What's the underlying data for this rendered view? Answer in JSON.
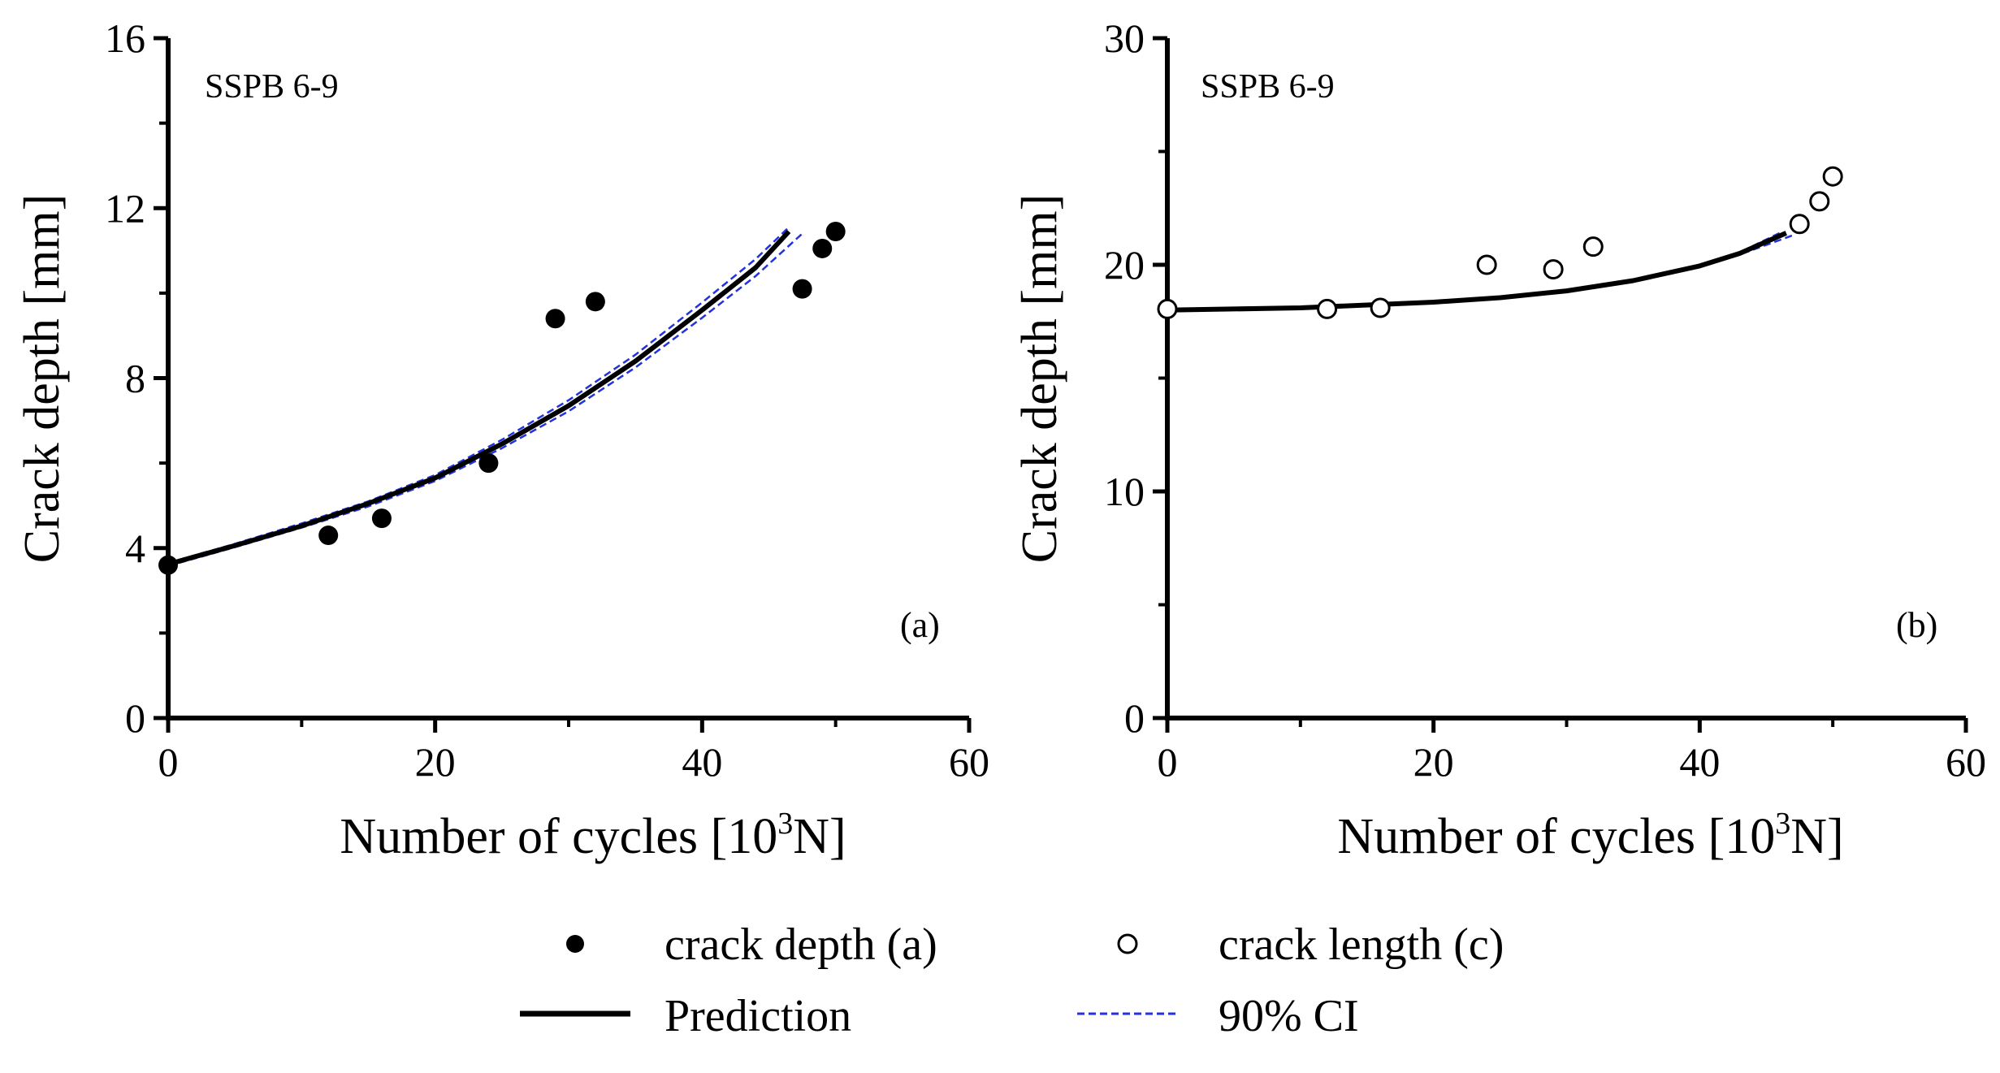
{
  "chart_data": [
    {
      "type": "scatter",
      "panel_title": "SSPB 6-9",
      "panel_tag": "(a)",
      "xlabel": "Number of cycles [10",
      "xlabel_sup": "3",
      "xlabel_tail": "N]",
      "ylabel": "Crack depth [mm]",
      "xlim": [
        0,
        60
      ],
      "ylim": [
        0,
        16
      ],
      "xticks": [
        "0",
        "20",
        "40",
        "60"
      ],
      "yticks": [
        "0",
        "4",
        "8",
        "12",
        "16"
      ],
      "grid": false,
      "series": [
        {
          "name": "crack depth (a)",
          "marker": "filled-circle",
          "points": [
            [
              0,
              3.6
            ],
            [
              12,
              4.3
            ],
            [
              16,
              4.7
            ],
            [
              24,
              6.0
            ],
            [
              29,
              9.4
            ],
            [
              32,
              9.8
            ],
            [
              47.5,
              10.1
            ],
            [
              49,
              11.05
            ],
            [
              50,
              11.45
            ]
          ]
        },
        {
          "name": "Prediction",
          "style": "solid",
          "points": [
            [
              0,
              3.62
            ],
            [
              5,
              4.06
            ],
            [
              10,
              4.52
            ],
            [
              15,
              5.05
            ],
            [
              20,
              5.65
            ],
            [
              25,
              6.45
            ],
            [
              30,
              7.35
            ],
            [
              35,
              8.4
            ],
            [
              40,
              9.6
            ],
            [
              44,
              10.6
            ],
            [
              46.5,
              11.45
            ]
          ]
        },
        {
          "name": "90% CI",
          "style": "dashed",
          "points": [
            [
              0,
              3.65
            ],
            [
              5,
              4.1
            ],
            [
              10,
              4.58
            ],
            [
              15,
              5.1
            ],
            [
              20,
              5.72
            ],
            [
              25,
              6.55
            ],
            [
              30,
              7.48
            ],
            [
              35,
              8.55
            ],
            [
              40,
              9.78
            ],
            [
              44,
              10.8
            ],
            [
              46.5,
              11.55
            ]
          ]
        },
        {
          "name": "90% CI",
          "style": "dashed",
          "points": [
            [
              0,
              3.58
            ],
            [
              5,
              4.02
            ],
            [
              10,
              4.48
            ],
            [
              15,
              4.98
            ],
            [
              20,
              5.58
            ],
            [
              25,
              6.35
            ],
            [
              30,
              7.22
            ],
            [
              35,
              8.25
            ],
            [
              40,
              9.42
            ],
            [
              44,
              10.4
            ],
            [
              47.5,
              11.4
            ]
          ]
        }
      ]
    },
    {
      "type": "scatter",
      "panel_title": "SSPB 6-9",
      "panel_tag": "(b)",
      "xlabel": "Number of cycles [10",
      "xlabel_sup": "3",
      "xlabel_tail": "N]",
      "ylabel": "Crack depth [mm]",
      "xlim": [
        0,
        60
      ],
      "ylim": [
        0,
        30
      ],
      "xticks": [
        "0",
        "20",
        "40",
        "60"
      ],
      "yticks": [
        "0",
        "10",
        "20",
        "30"
      ],
      "grid": false,
      "series": [
        {
          "name": "crack length (c)",
          "marker": "open-circle",
          "points": [
            [
              0,
              18.05
            ],
            [
              12,
              18.05
            ],
            [
              16,
              18.1
            ],
            [
              24,
              20.0
            ],
            [
              29,
              19.8
            ],
            [
              32,
              20.8
            ],
            [
              47.5,
              21.8
            ],
            [
              49,
              22.8
            ],
            [
              50,
              23.9
            ]
          ]
        },
        {
          "name": "Prediction",
          "style": "solid",
          "points": [
            [
              0,
              18.0
            ],
            [
              10,
              18.1
            ],
            [
              20,
              18.35
            ],
            [
              25,
              18.55
            ],
            [
              30,
              18.85
            ],
            [
              35,
              19.3
            ],
            [
              40,
              19.95
            ],
            [
              43,
              20.5
            ],
            [
              46.5,
              21.4
            ]
          ]
        },
        {
          "name": "90% CI",
          "style": "dashed",
          "points": [
            [
              0,
              17.97
            ],
            [
              10,
              18.07
            ],
            [
              20,
              18.3
            ],
            [
              25,
              18.5
            ],
            [
              30,
              18.8
            ],
            [
              35,
              19.25
            ],
            [
              40,
              19.9
            ],
            [
              43,
              20.45
            ],
            [
              47,
              21.3
            ]
          ]
        },
        {
          "name": "90% CI",
          "style": "dashed",
          "points": [
            [
              0,
              18.03
            ],
            [
              10,
              18.13
            ],
            [
              20,
              18.4
            ],
            [
              25,
              18.6
            ],
            [
              30,
              18.9
            ],
            [
              35,
              19.35
            ],
            [
              40,
              20.0
            ],
            [
              43,
              20.55
            ],
            [
              46,
              21.4
            ]
          ]
        }
      ]
    }
  ],
  "legend": {
    "items": [
      {
        "label": "crack depth (a)",
        "symbol": "filled-circle"
      },
      {
        "label": "crack length (c)",
        "symbol": "open-circle"
      },
      {
        "label": "Prediction",
        "symbol": "solid-line"
      },
      {
        "label": "90% CI",
        "symbol": "dashed-line"
      }
    ]
  },
  "colors": {
    "prediction": "#000000",
    "ci": "#2233dd",
    "markers": "#000000"
  }
}
